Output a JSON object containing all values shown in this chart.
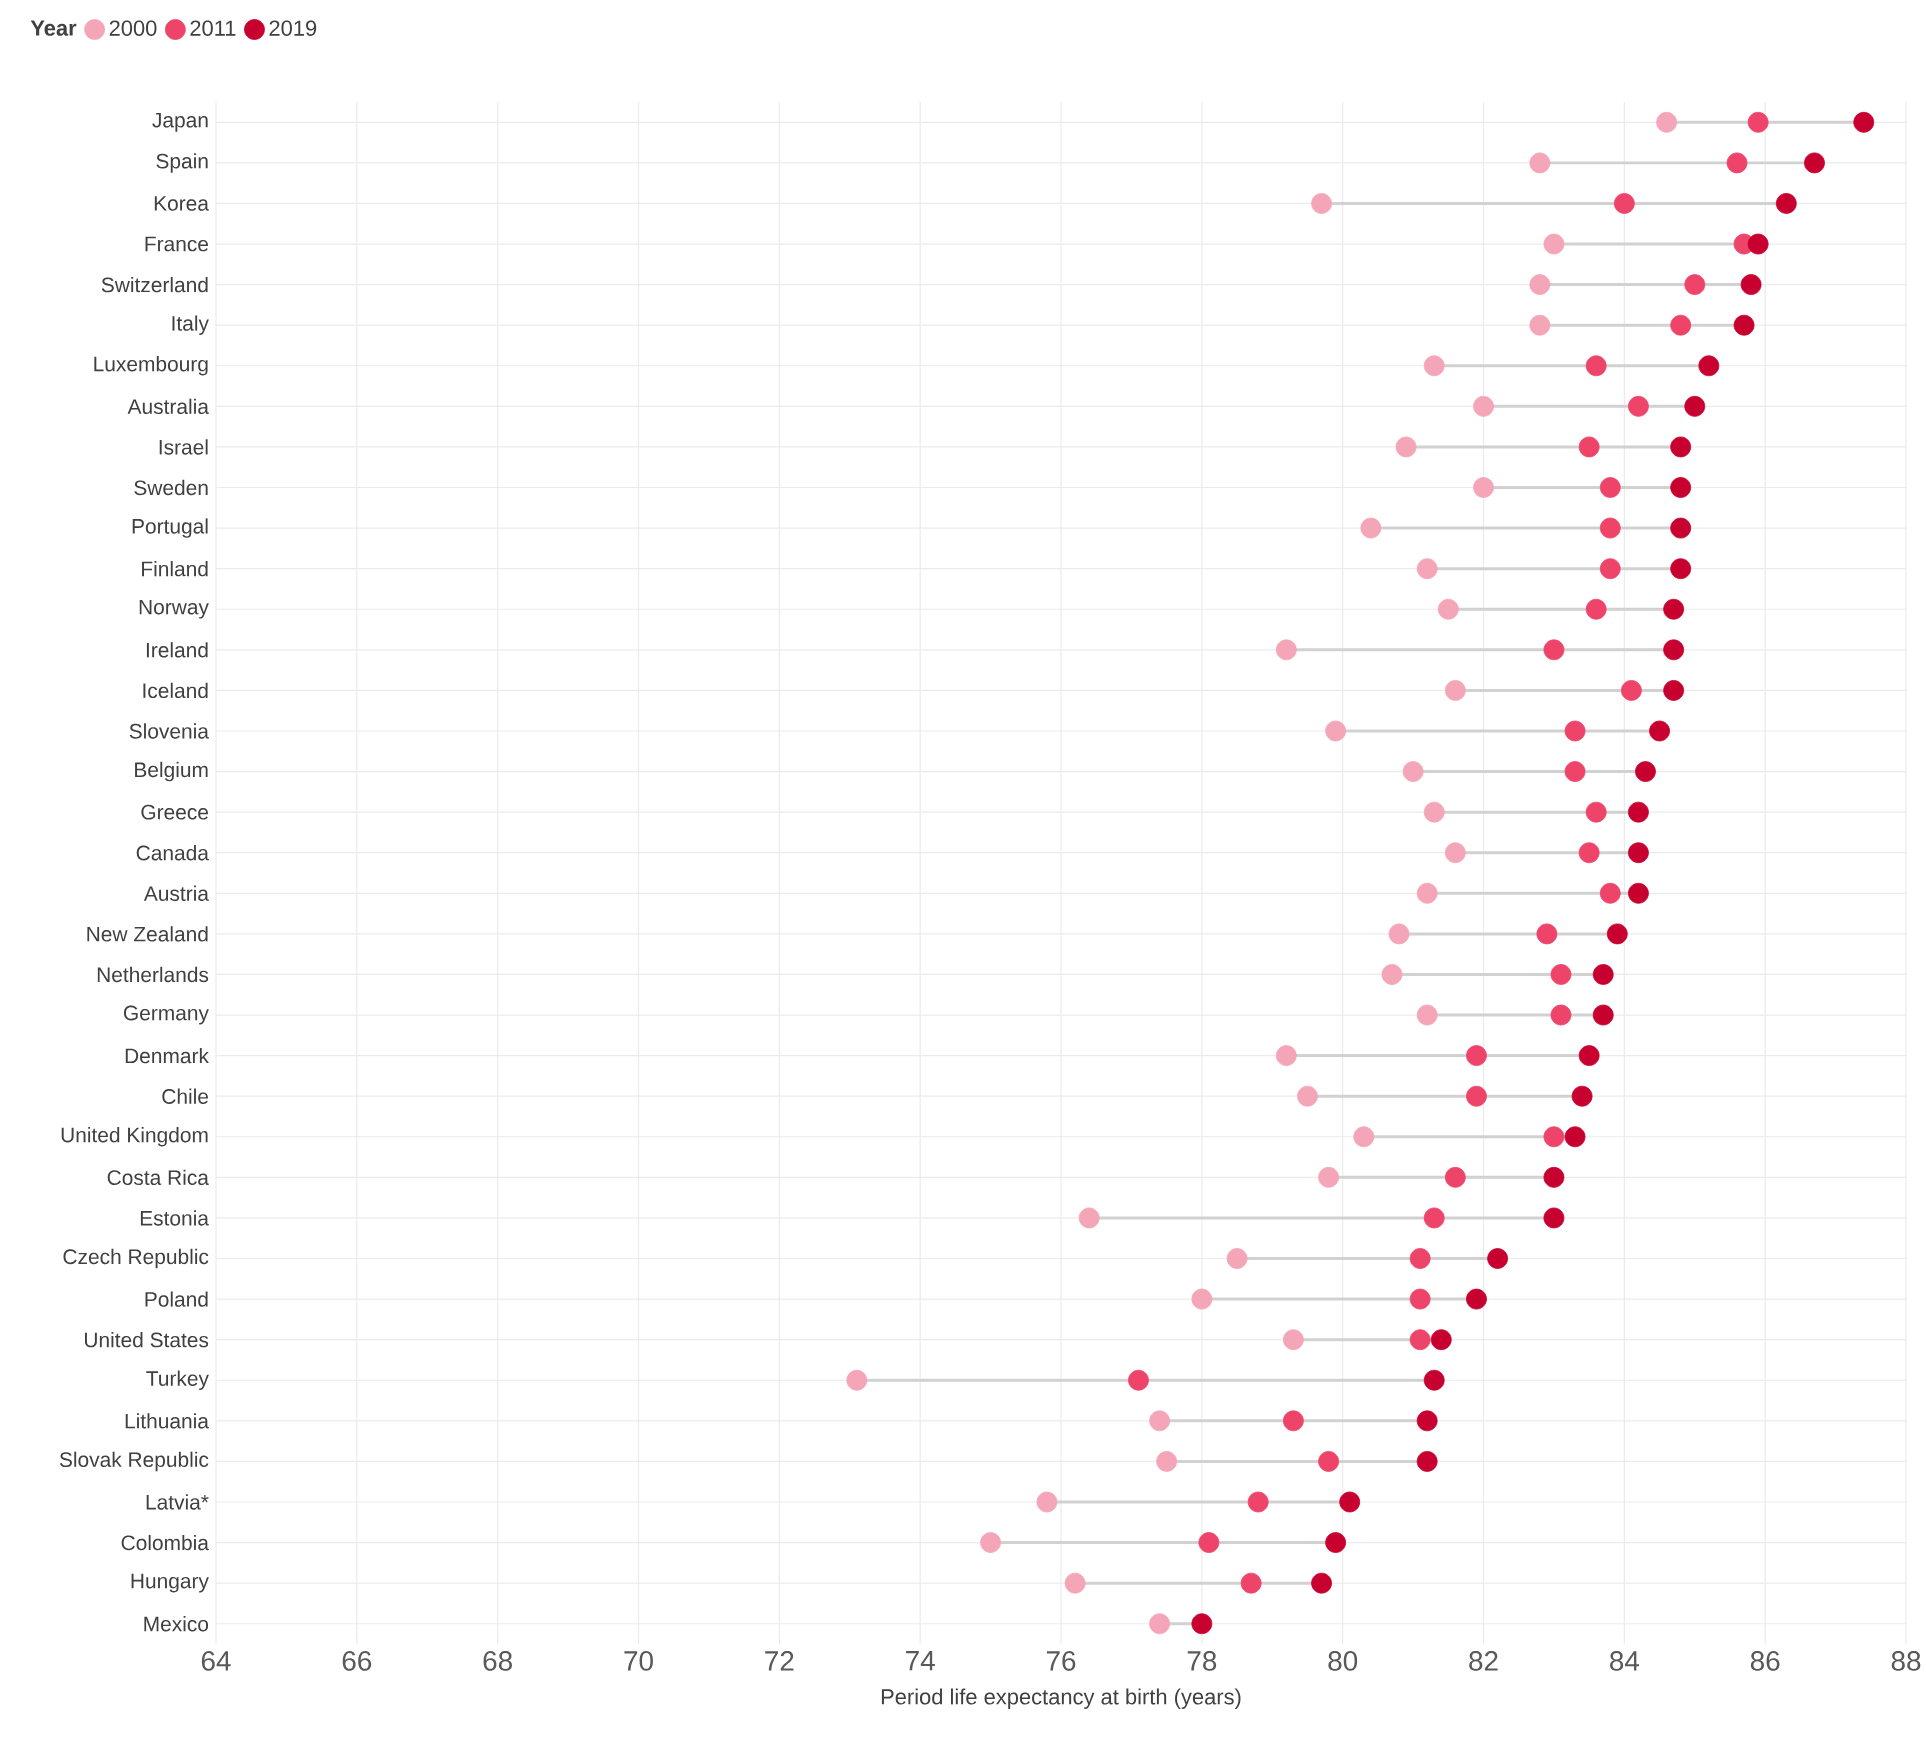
{
  "chart_data": {
    "type": "scatter",
    "orientation": "horizontal",
    "xlabel": "Period life expectancy at birth (years)",
    "legend_title": "Year",
    "legend": "top left",
    "grid": true,
    "marker": "circle",
    "categories": [
      "Japan",
      "Spain",
      "Korea",
      "France",
      "Switzerland",
      "Italy",
      "Luxembourg",
      "Australia",
      "Israel",
      "Sweden",
      "Portugal",
      "Finland",
      "Norway",
      "Ireland",
      "Iceland",
      "Slovenia",
      "Belgium",
      "Greece",
      "Canada",
      "Austria",
      "New Zealand",
      "Netherlands",
      "Germany",
      "Denmark",
      "Chile",
      "United Kingdom",
      "Costa Rica",
      "Estonia",
      "Czech Republic",
      "Poland",
      "United States",
      "Turkey",
      "Lithuania",
      "Slovak Republic",
      "Latvia*",
      "Colombia",
      "Hungary",
      "Mexico"
    ],
    "xlim": [
      64,
      88
    ],
    "xticks": [
      64,
      66,
      68,
      70,
      72,
      74,
      76,
      78,
      80,
      82,
      84,
      86,
      88
    ],
    "series": [
      {
        "name": "2000",
        "color": "#f4a6b8",
        "values": [
          84.6,
          82.8,
          79.7,
          83.0,
          82.8,
          82.8,
          81.3,
          82.0,
          80.9,
          82.0,
          80.4,
          81.2,
          81.5,
          79.2,
          81.6,
          79.9,
          81.0,
          81.3,
          81.6,
          81.2,
          80.8,
          80.7,
          81.2,
          79.2,
          79.5,
          80.3,
          79.8,
          76.4,
          78.5,
          78.0,
          79.3,
          73.1,
          77.4,
          77.5,
          75.8,
          75.0,
          76.2,
          77.4
        ]
      },
      {
        "name": "2011",
        "color": "#ef4469",
        "values": [
          85.9,
          85.6,
          84.0,
          85.7,
          85.0,
          84.8,
          83.6,
          84.2,
          83.5,
          83.8,
          83.8,
          83.8,
          83.6,
          83.0,
          84.1,
          83.3,
          83.3,
          83.6,
          83.5,
          83.8,
          82.9,
          83.1,
          83.1,
          81.9,
          81.9,
          83.0,
          81.6,
          81.3,
          81.1,
          81.1,
          81.1,
          77.1,
          79.3,
          79.8,
          78.8,
          78.1,
          78.7,
          null
        ]
      },
      {
        "name": "2019",
        "color": "#c8002f",
        "values": [
          87.4,
          86.7,
          86.3,
          85.9,
          85.8,
          85.7,
          85.2,
          85.0,
          84.8,
          84.8,
          84.8,
          84.8,
          84.7,
          84.7,
          84.7,
          84.5,
          84.3,
          84.2,
          84.2,
          84.2,
          83.9,
          83.7,
          83.7,
          83.5,
          83.4,
          83.3,
          83.0,
          83.0,
          82.2,
          81.9,
          81.4,
          81.3,
          81.2,
          81.2,
          80.1,
          79.9,
          79.7,
          78.0
        ]
      }
    ]
  }
}
